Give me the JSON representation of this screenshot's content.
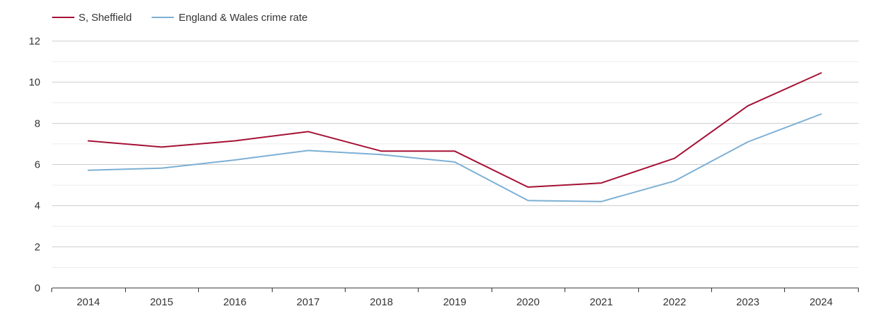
{
  "chart_data": {
    "type": "line",
    "title": "",
    "xlabel": "",
    "ylabel": "",
    "categories": [
      "2014",
      "2015",
      "2016",
      "2017",
      "2018",
      "2019",
      "2020",
      "2021",
      "2022",
      "2023",
      "2024"
    ],
    "ylim": [
      0,
      12
    ],
    "y_ticks": [
      "0",
      "2",
      "4",
      "6",
      "8",
      "10",
      "12"
    ],
    "y_tick_values": [
      0,
      2,
      4,
      6,
      8,
      10,
      12
    ],
    "grid": true,
    "legend_position": "top-left",
    "series": [
      {
        "name": "S, Sheffield",
        "color": "#a50f34",
        "values": [
          7.15,
          6.85,
          7.15,
          7.6,
          6.65,
          6.65,
          4.9,
          5.1,
          6.3,
          8.85,
          10.45
        ]
      },
      {
        "name": "England & Wales crime rate",
        "color": "#7bafd4",
        "values": [
          5.72,
          5.82,
          6.22,
          6.68,
          6.48,
          6.12,
          4.25,
          4.2,
          5.2,
          7.1,
          8.45
        ]
      }
    ]
  }
}
